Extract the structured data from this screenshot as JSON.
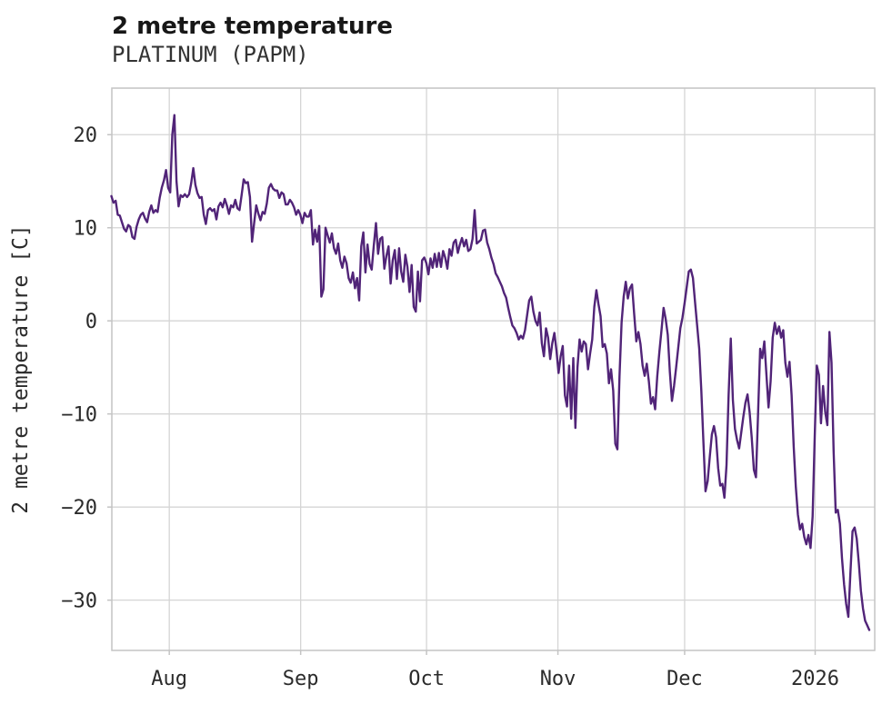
{
  "header": {
    "title": "2 metre temperature",
    "subtitle": "PLATINUM (PAPM)"
  },
  "colors": {
    "line": "#512478",
    "grid": "#d5d5d5",
    "frame": "#c4c4c4",
    "title_text": "#171717",
    "tick_text": "#2b2b2b",
    "background": "#ffffff"
  },
  "chart_data": {
    "type": "line",
    "title": "2 metre temperature",
    "subtitle": "PLATINUM (PAPM)",
    "xlabel": "",
    "ylabel": "2 metre temperature [C]",
    "grid": true,
    "legend": "none",
    "xlim": [
      0.2,
      180.8
    ],
    "ylim": [
      -35.4,
      25.0
    ],
    "x_unit": "days",
    "x_ticks": [
      {
        "label": "Aug",
        "day": 13.8
      },
      {
        "label": "Sep",
        "day": 44.9
      },
      {
        "label": "Oct",
        "day": 74.7
      },
      {
        "label": "Nov",
        "day": 105.8
      },
      {
        "label": "Dec",
        "day": 135.8
      },
      {
        "label": "2026",
        "day": 166.7
      }
    ],
    "y_ticks": [
      20,
      10,
      0,
      -10,
      -20,
      -30
    ],
    "series": [
      {
        "name": "2 metre temperature [C]",
        "start_day": 0.1,
        "step_days": 0.497,
        "values": [
          13.4,
          12.7,
          12.9,
          11.4,
          11.3,
          10.6,
          9.9,
          9.6,
          10.3,
          10.1,
          9.0,
          8.8,
          10.1,
          10.9,
          11.4,
          11.6,
          11.0,
          10.6,
          11.7,
          12.4,
          11.6,
          11.9,
          11.7,
          13.2,
          14.3,
          15.1,
          16.2,
          14.3,
          13.8,
          20.0,
          22.1,
          15.0,
          12.3,
          13.5,
          13.3,
          13.6,
          13.3,
          13.6,
          14.8,
          16.4,
          14.6,
          13.7,
          13.2,
          13.3,
          11.4,
          10.4,
          11.9,
          12.1,
          11.8,
          12.0,
          10.9,
          12.3,
          12.7,
          12.2,
          13.1,
          12.4,
          11.5,
          12.4,
          12.2,
          13.0,
          12.1,
          11.9,
          13.5,
          15.2,
          14.8,
          14.9,
          13.3,
          8.5,
          10.5,
          12.4,
          11.5,
          10.8,
          11.7,
          11.5,
          12.6,
          14.3,
          14.7,
          14.2,
          14.0,
          14.0,
          13.2,
          13.8,
          13.6,
          12.5,
          12.5,
          13.0,
          12.7,
          12.2,
          11.4,
          11.9,
          11.4,
          10.5,
          11.6,
          11.2,
          11.2,
          11.9,
          8.2,
          9.8,
          8.5,
          10.2,
          2.6,
          3.4,
          10.0,
          9.2,
          8.4,
          9.4,
          7.8,
          7.2,
          8.3,
          6.5,
          5.7,
          6.9,
          6.2,
          4.6,
          4.1,
          5.2,
          3.5,
          4.6,
          2.2,
          8.0,
          9.5,
          5.2,
          8.2,
          6.1,
          5.5,
          8.1,
          10.5,
          7.2,
          8.8,
          9.0,
          5.6,
          7.0,
          8.0,
          4.0,
          6.5,
          7.6,
          4.5,
          7.8,
          5.3,
          4.2,
          7.1,
          5.8,
          3.1,
          6.0,
          1.5,
          1.0,
          5.3,
          2.1,
          6.5,
          6.8,
          6.2,
          5.0,
          6.7,
          5.7,
          7.2,
          5.8,
          7.3,
          5.8,
          7.5,
          6.8,
          5.6,
          7.7,
          7.0,
          8.4,
          8.7,
          7.3,
          8.2,
          8.9,
          8.0,
          8.7,
          7.5,
          7.7,
          8.8,
          11.9,
          8.3,
          8.5,
          8.7,
          9.7,
          9.8,
          8.4,
          7.7,
          6.8,
          6.1,
          5.1,
          4.7,
          4.2,
          3.7,
          3.0,
          2.5,
          1.4,
          0.4,
          -0.5,
          -0.8,
          -1.3,
          -2.0,
          -1.6,
          -1.9,
          -1.0,
          0.6,
          2.2,
          2.6,
          1.0,
          0.0,
          -0.5,
          0.9,
          -2.4,
          -3.8,
          -0.8,
          -1.8,
          -4.1,
          -2.4,
          -1.3,
          -3.2,
          -5.6,
          -3.8,
          -2.7,
          -8.0,
          -9.2,
          -4.8,
          -10.5,
          -4.0,
          -11.5,
          -5.0,
          -2.0,
          -3.3,
          -2.2,
          -2.5,
          -5.2,
          -3.5,
          -2.0,
          1.5,
          3.3,
          1.8,
          0.5,
          -2.8,
          -2.5,
          -3.5,
          -6.7,
          -5.2,
          -7.5,
          -13.2,
          -13.8,
          -6.0,
          -0.2,
          2.6,
          4.2,
          2.4,
          3.5,
          3.9,
          0.8,
          -2.2,
          -1.2,
          -2.5,
          -4.8,
          -5.9,
          -4.6,
          -6.5,
          -8.9,
          -8.2,
          -9.5,
          -6.0,
          -3.3,
          -1.0,
          1.4,
          0.2,
          -1.5,
          -5.5,
          -8.6,
          -7.0,
          -5.0,
          -2.9,
          -0.8,
          0.3,
          1.9,
          3.6,
          5.3,
          5.5,
          4.6,
          2.0,
          -0.5,
          -3.0,
          -7.5,
          -13.0,
          -18.3,
          -17.2,
          -14.6,
          -12.2,
          -11.3,
          -12.5,
          -15.8,
          -17.7,
          -17.5,
          -19.0,
          -15.5,
          -8.0,
          -1.9,
          -8.5,
          -11.6,
          -12.8,
          -13.7,
          -12.0,
          -10.3,
          -8.8,
          -7.9,
          -9.8,
          -12.5,
          -16.0,
          -16.8,
          -10.0,
          -3.0,
          -4.0,
          -2.2,
          -5.8,
          -9.3,
          -6.5,
          -1.8,
          -0.2,
          -1.4,
          -0.6,
          -1.8,
          -1.0,
          -4.5,
          -6.0,
          -4.4,
          -8.0,
          -13.5,
          -17.8,
          -20.8,
          -22.4,
          -21.8,
          -23.2,
          -24.0,
          -23.0,
          -24.4,
          -21.0,
          -12.5,
          -4.8,
          -5.8,
          -11.0,
          -7.0,
          -9.8,
          -11.2,
          -1.2,
          -4.5,
          -14.0,
          -20.6,
          -20.3,
          -21.8,
          -25.5,
          -28.3,
          -30.4,
          -31.8,
          -27.0,
          -22.6,
          -22.2,
          -23.4,
          -26.0,
          -29.0,
          -30.9,
          -32.2,
          -32.7,
          -33.2
        ]
      }
    ]
  }
}
